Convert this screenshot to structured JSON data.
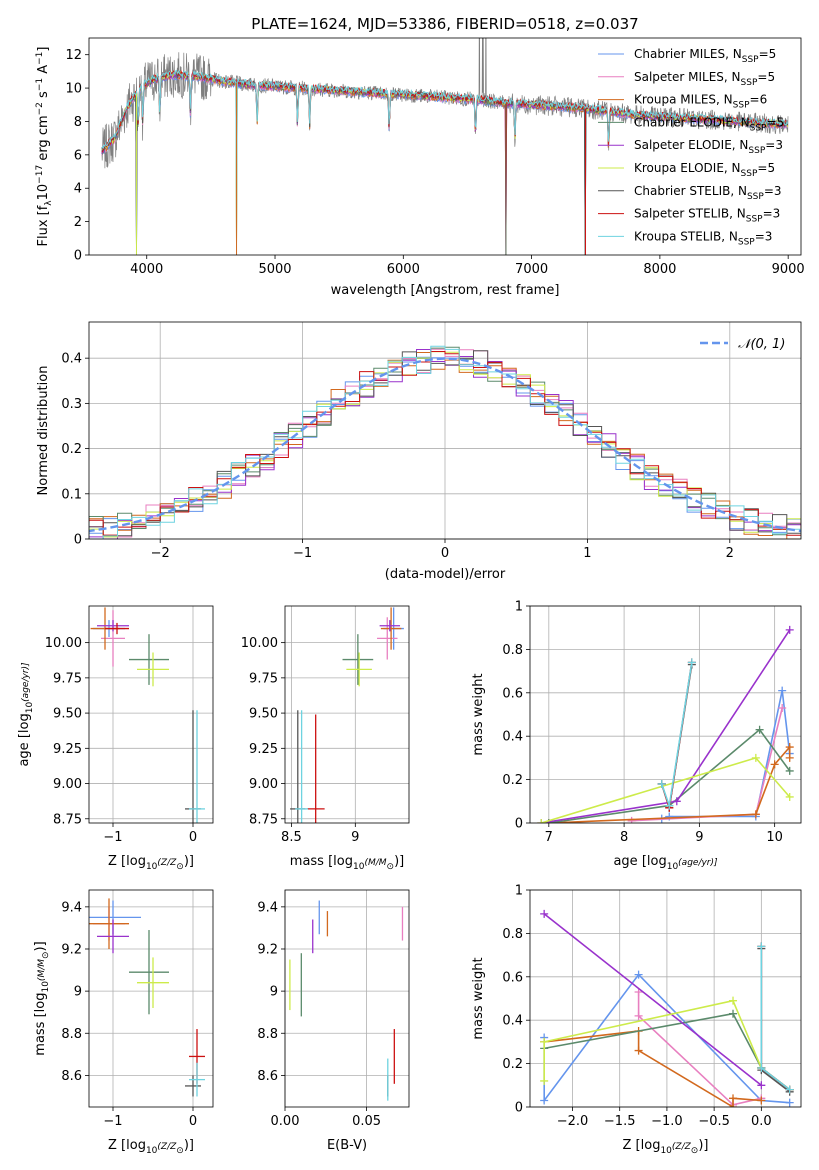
{
  "figure": {
    "title": "PLATE=1624, MJD=53386, FIBERID=0518, z=0.037"
  },
  "colors": {
    "chabrier_miles": "#6495ED",
    "salpeter_miles": "#E87FC0",
    "kroupa_miles": "#D2691E",
    "chabrier_elodie": "#5B8A6B",
    "salpeter_elodie": "#9932CC",
    "kroupa_elodie": "#CDEB4A",
    "chabrier_stelib": "#555555",
    "salpeter_stelib": "#CC1111",
    "kroupa_stelib": "#6ED3E0",
    "spectrum": "#7F7F7F"
  },
  "chart_data": [
    {
      "id": "spectrum",
      "type": "line",
      "xlabel": "wavelength [Angstrom, rest frame]",
      "ylabel_parts": [
        "Flux [f",
        "λ",
        "10",
        "−17",
        " erg cm",
        "−2",
        " s",
        "−1",
        " A",
        "−1",
        "]"
      ],
      "xlim": [
        3550,
        9100
      ],
      "ylim": [
        0,
        13
      ],
      "xticks": [
        4000,
        5000,
        6000,
        7000,
        8000,
        9000
      ],
      "yticks": [
        0,
        2,
        4,
        6,
        8,
        10,
        12
      ],
      "grid": false,
      "legend_position": "top-right",
      "data_x_range": [
        3650,
        9000
      ],
      "continuum": {
        "x": [
          3650,
          3750,
          3850,
          3950,
          4050,
          4200,
          4400,
          4600,
          4800,
          5000,
          5200,
          5400,
          5600,
          5800,
          6000,
          6200,
          6400,
          6600,
          6800,
          7000,
          7200,
          7400,
          7600,
          7800,
          8000,
          8200,
          8400,
          8600,
          8800,
          9000
        ],
        "y": [
          6.2,
          7.0,
          8.9,
          10.0,
          10.5,
          10.8,
          10.7,
          10.4,
          10.2,
          10.1,
          10.0,
          9.9,
          9.8,
          9.7,
          9.6,
          9.5,
          9.4,
          9.3,
          9.1,
          9.0,
          8.9,
          8.8,
          8.6,
          8.4,
          8.3,
          8.2,
          8.1,
          8.0,
          7.9,
          7.8
        ]
      },
      "absorption_features": [
        3934,
        3969,
        4102,
        4340,
        4861,
        5175,
        5270,
        5890,
        6563,
        6870,
        7600
      ],
      "spikes_to_zero": [
        3920,
        4700,
        6800,
        7420
      ],
      "series": [
        {
          "label_parts": [
            "Chabrier MILES, N",
            "SSP",
            "=5"
          ],
          "color_key": "chabrier_miles"
        },
        {
          "label_parts": [
            "Salpeter MILES, N",
            "SSP",
            "=5"
          ],
          "color_key": "salpeter_miles"
        },
        {
          "label_parts": [
            "Kroupa MILES, N",
            "SSP",
            "=6"
          ],
          "color_key": "kroupa_miles"
        },
        {
          "label_parts": [
            "Chabrier ELODIE, N",
            "SSP",
            "=5"
          ],
          "color_key": "chabrier_elodie"
        },
        {
          "label_parts": [
            "Salpeter ELODIE, N",
            "SSP",
            "=3"
          ],
          "color_key": "salpeter_elodie"
        },
        {
          "label_parts": [
            "Kroupa ELODIE, N",
            "SSP",
            "=5"
          ],
          "color_key": "kroupa_elodie"
        },
        {
          "label_parts": [
            "Chabrier STELIB, N",
            "SSP",
            "=3"
          ],
          "color_key": "chabrier_stelib"
        },
        {
          "label_parts": [
            "Salpeter STELIB, N",
            "SSP",
            "=3"
          ],
          "color_key": "salpeter_stelib"
        },
        {
          "label_parts": [
            "Kroupa STELIB, N",
            "SSP",
            "=3"
          ],
          "color_key": "kroupa_stelib"
        }
      ]
    },
    {
      "id": "residuals",
      "type": "line",
      "xlabel": "(data-model)/error",
      "ylabel": "Normed distribution",
      "xlim": [
        -2.5,
        2.5
      ],
      "ylim": [
        0,
        0.48
      ],
      "xticks": [
        -2,
        -1,
        0,
        1,
        2
      ],
      "yticks": [
        0.0,
        0.1,
        0.2,
        0.3,
        0.4
      ],
      "grid": true,
      "legend_position": "top-right",
      "bin_width": 0.1,
      "gaussian": {
        "label": "𝒩(0, 1)",
        "mean": 0,
        "sigma": 1,
        "color_key": "chabrier_miles"
      },
      "histograms": [
        {
          "color_key": "chabrier_miles",
          "seed": 11
        },
        {
          "color_key": "salpeter_miles",
          "seed": 23
        },
        {
          "color_key": "kroupa_miles",
          "seed": 37
        },
        {
          "color_key": "chabrier_elodie",
          "seed": 41
        },
        {
          "color_key": "salpeter_elodie",
          "seed": 53
        },
        {
          "color_key": "kroupa_elodie",
          "seed": 67
        },
        {
          "color_key": "chabrier_stelib",
          "seed": 71
        },
        {
          "color_key": "salpeter_stelib",
          "seed": 83
        },
        {
          "color_key": "kroupa_stelib",
          "seed": 97
        }
      ]
    },
    {
      "id": "age_vs_z",
      "type": "scatter",
      "xlabel_parts": [
        "Z [log",
        "10",
        "(Z/Z",
        "⊙",
        ")]"
      ],
      "ylabel_parts": [
        "age  [log",
        "10",
        "(age/yr)]"
      ],
      "xlim": [
        -1.3,
        0.25
      ],
      "ylim": [
        8.72,
        10.26
      ],
      "xticks": [
        -1,
        0
      ],
      "yticks": [
        8.75,
        9.0,
        9.25,
        9.5,
        9.75,
        10.0
      ],
      "ytick_labels": [
        "8.75",
        "9.00",
        "9.25",
        "9.50",
        "9.75",
        "10.00"
      ],
      "grid": true,
      "points": [
        {
          "c": "chabrier_miles",
          "x": -1.05,
          "y": 10.1,
          "xe": 0.2,
          "ye": 0.06
        },
        {
          "c": "salpeter_miles",
          "x": -1.0,
          "y": 10.03,
          "xe": 0.15,
          "ye": 0.2
        },
        {
          "c": "kroupa_miles",
          "x": -1.1,
          "y": 10.1,
          "xe": 0.18,
          "ye": 0.15
        },
        {
          "c": "chabrier_elodie",
          "x": -0.55,
          "y": 9.88,
          "xe": 0.25,
          "ye": 0.18
        },
        {
          "c": "salpeter_elodie",
          "x": -1.0,
          "y": 10.12,
          "xe": 0.2,
          "ye": 0.04
        },
        {
          "c": "kroupa_elodie",
          "x": -0.5,
          "y": 9.81,
          "xe": 0.2,
          "ye": 0.12
        },
        {
          "c": "chabrier_stelib",
          "x": 0.0,
          "y": 8.82,
          "xe": 0.1,
          "ye": 0.7
        },
        {
          "c": "salpeter_stelib",
          "x": -0.95,
          "y": 10.1,
          "xe": 0.15,
          "ye": 0.04
        },
        {
          "c": "kroupa_stelib",
          "x": 0.05,
          "y": 8.82,
          "xe": 0.1,
          "ye": 0.7
        }
      ]
    },
    {
      "id": "age_vs_mass",
      "type": "scatter",
      "xlabel_parts": [
        "mass [log",
        "10",
        "(M/M",
        "⊙",
        ")]"
      ],
      "xlim": [
        8.45,
        9.42
      ],
      "ylim": [
        8.72,
        10.26
      ],
      "xticks": [
        8.5,
        9.0
      ],
      "yticks": [
        8.75,
        9.0,
        9.25,
        9.5,
        9.75,
        10.0
      ],
      "ytick_labels": [
        "8.75",
        "9.00",
        "9.25",
        "9.50",
        "9.75",
        "10.00"
      ],
      "grid": true,
      "points": [
        {
          "c": "chabrier_miles",
          "x": 9.3,
          "y": 10.1,
          "xe": 0.08,
          "ye": 0.15
        },
        {
          "c": "salpeter_miles",
          "x": 9.25,
          "y": 10.03,
          "xe": 0.08,
          "ye": 0.15
        },
        {
          "c": "kroupa_miles",
          "x": 9.28,
          "y": 10.1,
          "xe": 0.08,
          "ye": 0.15
        },
        {
          "c": "chabrier_elodie",
          "x": 9.02,
          "y": 9.88,
          "xe": 0.12,
          "ye": 0.18
        },
        {
          "c": "salpeter_elodie",
          "x": 9.27,
          "y": 10.12,
          "xe": 0.08,
          "ye": 0.04
        },
        {
          "c": "kroupa_elodie",
          "x": 9.03,
          "y": 9.81,
          "xe": 0.1,
          "ye": 0.12
        },
        {
          "c": "chabrier_stelib",
          "x": 8.55,
          "y": 8.82,
          "xe": 0.06,
          "ye": 0.7
        },
        {
          "c": "salpeter_stelib",
          "x": 8.69,
          "y": 8.82,
          "xe": 0.07,
          "ye": 0.67
        },
        {
          "c": "kroupa_stelib",
          "x": 8.58,
          "y": 8.82,
          "xe": 0.05,
          "ye": 0.7
        }
      ]
    },
    {
      "id": "weight_vs_age",
      "type": "line",
      "xlabel_parts": [
        "age  [log",
        "10",
        "(age/yr)]"
      ],
      "ylabel": "mass weight",
      "xlim": [
        6.75,
        10.35
      ],
      "ylim": [
        0,
        1.0
      ],
      "xticks": [
        7,
        8,
        9,
        10
      ],
      "yticks": [
        0.0,
        0.2,
        0.4,
        0.6,
        0.8,
        1.0
      ],
      "grid": true,
      "series": [
        {
          "c": "chabrier_miles",
          "x": [
            8.5,
            8.6,
            9.75,
            10.1,
            10.2
          ],
          "y": [
            0.02,
            0.03,
            0.03,
            0.61,
            0.32
          ]
        },
        {
          "c": "salpeter_miles",
          "x": [
            8.1,
            9.75,
            10.1
          ],
          "y": [
            0.01,
            0.04,
            0.53
          ]
        },
        {
          "c": "kroupa_miles",
          "x": [
            7.0,
            9.75,
            10.0,
            10.2,
            10.2
          ],
          "y": [
            0.0,
            0.04,
            0.27,
            0.35,
            0.3
          ]
        },
        {
          "c": "chabrier_elodie",
          "x": [
            7.0,
            8.6,
            9.8,
            10.2
          ],
          "y": [
            0.0,
            0.08,
            0.43,
            0.24
          ]
        },
        {
          "c": "salpeter_elodie",
          "x": [
            6.9,
            8.7,
            10.2
          ],
          "y": [
            0.0,
            0.1,
            0.89
          ]
        },
        {
          "c": "kroupa_elodie",
          "x": [
            6.9,
            9.75,
            10.2
          ],
          "y": [
            0.0,
            0.3,
            0.12
          ]
        },
        {
          "c": "chabrier_stelib",
          "x": [
            8.5,
            8.6,
            8.9
          ],
          "y": [
            0.18,
            0.07,
            0.73
          ]
        },
        {
          "c": "salpeter_stelib",
          "x": [
            8.5,
            8.6,
            8.9
          ],
          "y": [
            0.18,
            0.07,
            0.74
          ]
        },
        {
          "c": "kroupa_stelib",
          "x": [
            8.5,
            8.6,
            8.9
          ],
          "y": [
            0.18,
            0.08,
            0.74
          ]
        }
      ]
    },
    {
      "id": "mass_vs_z",
      "type": "scatter",
      "xlabel_parts": [
        "Z [log",
        "10",
        "(Z/Z",
        "⊙",
        ")]"
      ],
      "ylabel_parts": [
        "mass [log",
        "10",
        "(M/M",
        "⊙",
        ")]"
      ],
      "xlim": [
        -1.3,
        0.25
      ],
      "ylim": [
        8.45,
        9.48
      ],
      "xticks": [
        -1,
        0
      ],
      "yticks": [
        8.6,
        8.8,
        9.0,
        9.2,
        9.4
      ],
      "grid": true,
      "points": [
        {
          "c": "chabrier_miles",
          "x": -1.0,
          "y": 9.35,
          "xe": 0.35,
          "ye": 0.08
        },
        {
          "c": "salpeter_miles",
          "x": -1.05,
          "y": 9.32,
          "xe": 0.2,
          "ye": 0.08
        },
        {
          "c": "kroupa_miles",
          "x": -1.05,
          "y": 9.32,
          "xe": 0.25,
          "ye": 0.12
        },
        {
          "c": "chabrier_elodie",
          "x": -0.55,
          "y": 9.09,
          "xe": 0.25,
          "ye": 0.2
        },
        {
          "c": "salpeter_elodie",
          "x": -1.0,
          "y": 9.26,
          "xe": 0.2,
          "ye": 0.08
        },
        {
          "c": "kroupa_elodie",
          "x": -0.5,
          "y": 9.04,
          "xe": 0.2,
          "ye": 0.12
        },
        {
          "c": "chabrier_stelib",
          "x": 0.0,
          "y": 8.55,
          "xe": 0.1,
          "ye": 0.05
        },
        {
          "c": "salpeter_stelib",
          "x": 0.05,
          "y": 8.69,
          "xe": 0.1,
          "ye": 0.13
        },
        {
          "c": "kroupa_stelib",
          "x": 0.05,
          "y": 8.58,
          "xe": 0.1,
          "ye": 0.08
        }
      ]
    },
    {
      "id": "mass_vs_ebv",
      "type": "scatter",
      "xlabel": "E(B-V)",
      "xlim": [
        0.0,
        0.076
      ],
      "ylim": [
        8.45,
        9.48
      ],
      "xticks": [
        0.0,
        0.05
      ],
      "xtick_labels": [
        "0.00",
        "0.05"
      ],
      "yticks": [
        8.6,
        8.8,
        9.0,
        9.2,
        9.4
      ],
      "grid": true,
      "points": [
        {
          "c": "chabrier_miles",
          "x": 0.021,
          "y": 9.35,
          "xe": 0.0,
          "ye": 0.08
        },
        {
          "c": "salpeter_miles",
          "x": 0.072,
          "y": 9.32,
          "xe": 0.0,
          "ye": 0.08
        },
        {
          "c": "kroupa_miles",
          "x": 0.026,
          "y": 9.32,
          "xe": 0.0,
          "ye": 0.06
        },
        {
          "c": "chabrier_elodie",
          "x": 0.01,
          "y": 9.03,
          "xe": 0.0,
          "ye": 0.15
        },
        {
          "c": "salpeter_elodie",
          "x": 0.017,
          "y": 9.26,
          "xe": 0.0,
          "ye": 0.08
        },
        {
          "c": "kroupa_elodie",
          "x": 0.003,
          "y": 9.03,
          "xe": 0.0,
          "ye": 0.12
        },
        {
          "c": "chabrier_stelib",
          "x": 0.063,
          "y": 8.55,
          "xe": 0.0,
          "ye": 0.05
        },
        {
          "c": "salpeter_stelib",
          "x": 0.067,
          "y": 8.69,
          "xe": 0.0,
          "ye": 0.13
        },
        {
          "c": "kroupa_stelib",
          "x": 0.063,
          "y": 8.58,
          "xe": 0.0,
          "ye": 0.1
        }
      ]
    },
    {
      "id": "weight_vs_z",
      "type": "line",
      "xlabel_parts": [
        "Z [log",
        "10",
        "(Z/Z",
        "⊙",
        ")]"
      ],
      "ylabel": "mass weight",
      "xlim": [
        -2.45,
        0.42
      ],
      "ylim": [
        0,
        1.0
      ],
      "xticks": [
        -2.0,
        -1.5,
        -1.0,
        -0.5,
        0.0
      ],
      "xtick_labels": [
        "−2.0",
        "−1.5",
        "−1.0",
        "−0.5",
        "0.0"
      ],
      "yticks": [
        0.0,
        0.2,
        0.4,
        0.6,
        0.8,
        1.0
      ],
      "grid": true,
      "series": [
        {
          "c": "chabrier_miles",
          "x": [
            -2.3,
            -2.3,
            -1.3,
            0.0,
            0.3
          ],
          "y": [
            0.32,
            0.03,
            0.61,
            0.03,
            0.02
          ]
        },
        {
          "c": "salpeter_miles",
          "x": [
            -1.3,
            -1.3,
            -0.3,
            0.0
          ],
          "y": [
            0.53,
            0.42,
            0.01,
            0.04
          ]
        },
        {
          "c": "kroupa_miles",
          "x": [
            -2.3,
            -1.3,
            -1.3,
            -0.3,
            -0.3,
            0.0
          ],
          "y": [
            0.3,
            0.35,
            0.26,
            0.0,
            0.04,
            0.03
          ]
        },
        {
          "c": "chabrier_elodie",
          "x": [
            -2.3,
            -0.3,
            0.0,
            0.3
          ],
          "y": [
            0.27,
            0.43,
            0.18,
            0.08
          ]
        },
        {
          "c": "salpeter_elodie",
          "x": [
            -2.3,
            0.0
          ],
          "y": [
            0.89,
            0.1
          ]
        },
        {
          "c": "kroupa_elodie",
          "x": [
            -2.3,
            -2.3,
            -0.3,
            0.0,
            0.3
          ],
          "y": [
            0.12,
            0.3,
            0.49,
            0.18,
            0.08
          ]
        },
        {
          "c": "chabrier_stelib",
          "x": [
            0.0,
            0.0,
            0.3
          ],
          "y": [
            0.73,
            0.17,
            0.07
          ]
        },
        {
          "c": "salpeter_stelib",
          "x": [
            0.0,
            0.0,
            0.3
          ],
          "y": [
            0.74,
            0.18,
            0.08
          ]
        },
        {
          "c": "kroupa_stelib",
          "x": [
            0.0,
            0.0,
            0.3
          ],
          "y": [
            0.74,
            0.18,
            0.08
          ]
        }
      ]
    }
  ]
}
